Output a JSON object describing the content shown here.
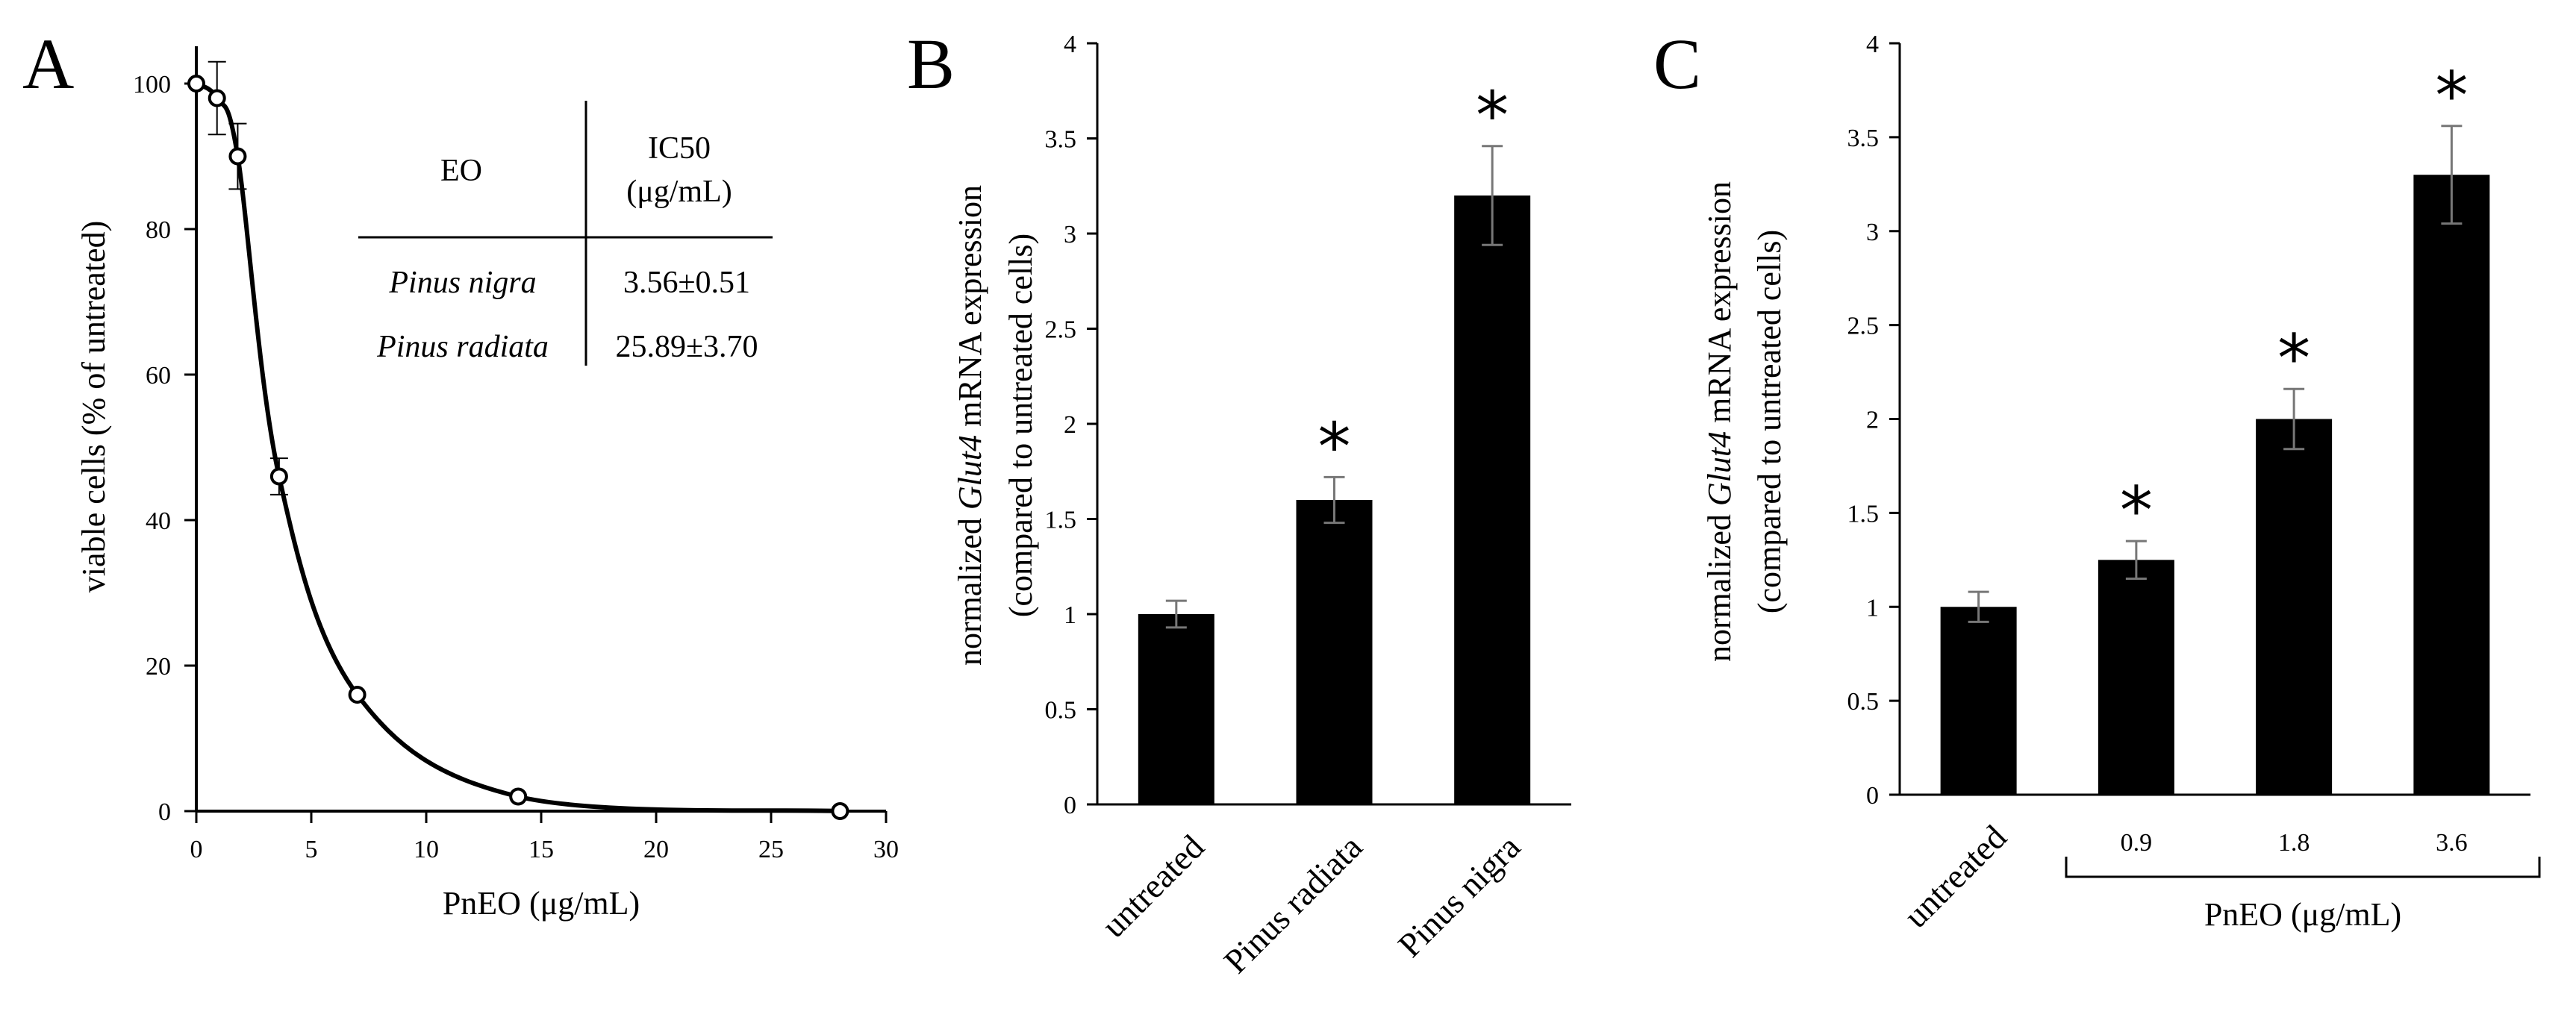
{
  "chart_data": [
    {
      "panel": "A",
      "type": "line",
      "xlabel": "PnEO (μg/mL)",
      "ylabel": "viable cells (% of untreated)",
      "xlim": [
        0,
        30
      ],
      "ylim": [
        0,
        100
      ],
      "xticks": [
        "0",
        "5",
        "10",
        "15",
        "20",
        "25",
        "30"
      ],
      "yticks": [
        "0",
        "20",
        "40",
        "60",
        "80",
        "100"
      ],
      "x": [
        0,
        0.9,
        1.8,
        3.6,
        7,
        14,
        28
      ],
      "y": [
        100,
        98,
        90,
        46,
        16,
        2,
        0
      ],
      "errors": [
        0,
        5,
        4.5,
        2.5,
        0,
        0,
        0
      ],
      "grid": false,
      "table": {
        "headers": [
          "EO",
          "IC50",
          "(μg/mL)"
        ],
        "rows": [
          {
            "name": "Pinus nigra",
            "value": "3.56±0.51"
          },
          {
            "name": "Pinus radiata",
            "value": "25.89±3.70"
          }
        ]
      }
    },
    {
      "panel": "B",
      "type": "bar",
      "ylabel_parts": [
        "normalized ",
        "Glut4",
        " mRNA expression"
      ],
      "ylabel2": "(compared to untreated cells)",
      "categories": [
        "untreated",
        "Pinus radiata",
        "Pinus nigra"
      ],
      "values": [
        1.0,
        1.6,
        3.2
      ],
      "errors": [
        0.07,
        0.12,
        0.26
      ],
      "significant": [
        "",
        "*",
        "*"
      ],
      "ylim": [
        0,
        4
      ],
      "yticks": [
        "0",
        "0.5",
        "1",
        "1.5",
        "2",
        "2.5",
        "3",
        "3.5",
        "4"
      ],
      "grid": false
    },
    {
      "panel": "C",
      "type": "bar",
      "ylabel_parts": [
        "normalized ",
        "Glut4",
        " mRNA expression"
      ],
      "ylabel2": "(compared to untreated cells)",
      "categories": [
        "untreated",
        "0.9",
        "1.8",
        "3.6"
      ],
      "values": [
        1.0,
        1.25,
        2.0,
        3.3
      ],
      "errors": [
        0.08,
        0.1,
        0.16,
        0.26
      ],
      "significant": [
        "",
        "*",
        "*",
        "*"
      ],
      "group_label": "PnEO (μg/mL)",
      "ylim": [
        0,
        4
      ],
      "yticks": [
        "0",
        "0.5",
        "1",
        "1.5",
        "2",
        "2.5",
        "3",
        "3.5",
        "4"
      ],
      "grid": false
    }
  ]
}
